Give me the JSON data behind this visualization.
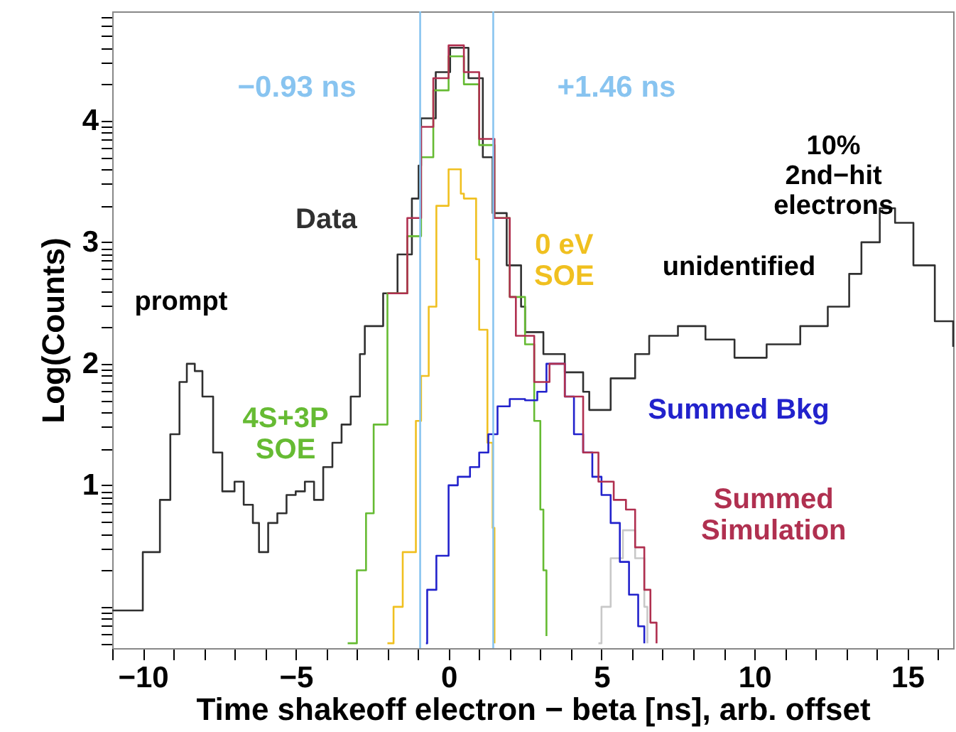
{
  "chart_data": {
    "type": "step",
    "xlabel": "Time shakeoff electron − beta [ns], arb. offset",
    "ylabel": "Log(Counts)",
    "xlim": [
      -11,
      16.5
    ],
    "ylim": [
      -0.34,
      4.9
    ],
    "xticks": [
      {
        "value": -11,
        "label": null
      },
      -10,
      {
        "value": -9,
        "label": null
      },
      {
        "value": -8,
        "label": null
      },
      {
        "value": -7,
        "label": null
      },
      {
        "value": -6,
        "label": null
      },
      -5,
      {
        "value": -4,
        "label": null
      },
      {
        "value": -3,
        "label": null
      },
      {
        "value": -2,
        "label": null
      },
      {
        "value": -1,
        "label": null
      },
      0,
      {
        "value": 1,
        "label": null
      },
      {
        "value": 2,
        "label": null
      },
      {
        "value": 3,
        "label": null
      },
      {
        "value": 4,
        "label": null
      },
      5,
      {
        "value": 6,
        "label": null
      },
      {
        "value": 7,
        "label": null
      },
      {
        "value": 8,
        "label": null
      },
      {
        "value": 9,
        "label": null
      },
      10,
      {
        "value": 11,
        "label": null
      },
      {
        "value": 12,
        "label": null
      },
      {
        "value": 13,
        "label": null
      },
      {
        "value": 14,
        "label": null
      },
      15,
      {
        "value": 16,
        "label": null
      }
    ],
    "yticks": [
      {
        "value": -0.3,
        "label": null
      },
      {
        "value": -0.22,
        "label": null
      },
      {
        "value": -0.15,
        "label": null
      },
      {
        "value": -0.1,
        "label": null
      },
      {
        "value": -0.05,
        "label": null
      },
      {
        "value": 0,
        "label": null
      },
      {
        "value": 0.3,
        "label": null
      },
      {
        "value": 0.48,
        "label": null
      },
      {
        "value": 0.6,
        "label": null
      },
      {
        "value": 0.7,
        "label": null
      },
      {
        "value": 0.78,
        "label": null
      },
      {
        "value": 0.85,
        "label": null
      },
      {
        "value": 0.9,
        "label": null
      },
      {
        "value": 0.95,
        "label": null
      },
      1,
      {
        "value": 1.3,
        "label": null
      },
      {
        "value": 1.48,
        "label": null
      },
      {
        "value": 1.6,
        "label": null
      },
      {
        "value": 1.7,
        "label": null
      },
      {
        "value": 1.78,
        "label": null
      },
      {
        "value": 1.85,
        "label": null
      },
      {
        "value": 1.9,
        "label": null
      },
      {
        "value": 1.95,
        "label": null
      },
      2,
      {
        "value": 2.3,
        "label": null
      },
      {
        "value": 2.48,
        "label": null
      },
      {
        "value": 2.6,
        "label": null
      },
      {
        "value": 2.7,
        "label": null
      },
      {
        "value": 2.78,
        "label": null
      },
      {
        "value": 2.85,
        "label": null
      },
      {
        "value": 2.9,
        "label": null
      },
      {
        "value": 2.95,
        "label": null
      },
      3,
      {
        "value": 3.3,
        "label": null
      },
      {
        "value": 3.48,
        "label": null
      },
      {
        "value": 3.6,
        "label": null
      },
      {
        "value": 3.7,
        "label": null
      },
      {
        "value": 3.78,
        "label": null
      },
      {
        "value": 3.85,
        "label": null
      },
      {
        "value": 3.9,
        "label": null
      },
      {
        "value": 3.95,
        "label": null
      },
      4,
      {
        "value": 4.3,
        "label": null
      },
      {
        "value": 4.48,
        "label": null
      },
      {
        "value": 4.6,
        "label": null
      },
      {
        "value": 4.7,
        "label": null
      },
      {
        "value": 4.78,
        "label": null
      },
      {
        "value": 4.85,
        "label": null
      }
    ],
    "series": [
      {
        "name": "Data",
        "color": "#303030",
        "x": [
          -11,
          -10.3,
          -10.0,
          -9.44,
          -9.1,
          -8.8,
          -8.56,
          -8.3,
          -8.05,
          -7.7,
          -7.4,
          -7.0,
          -6.7,
          -6.4,
          -6.2,
          -5.9,
          -5.6,
          -5.3,
          -5.0,
          -4.7,
          -4.4,
          -4.1,
          -3.8,
          -3.5,
          -3.2,
          -2.9,
          -2.74,
          -2.14,
          -1.67,
          -1.2,
          -0.98,
          -0.9,
          -0.42,
          0.05,
          0.65,
          1.12,
          1.44,
          1.9,
          2.37,
          2.5,
          3.1,
          3.8,
          4.4,
          4.6,
          5.3,
          6.1,
          6.56,
          7.5,
          8.4,
          9.35,
          10.4,
          11.5,
          12.4,
          13.1,
          13.5,
          14.1,
          14.6,
          15.2,
          15.9,
          16.5
        ],
        "values": [
          -0.03,
          -0.03,
          0.45,
          0.88,
          1.42,
          1.85,
          2.0,
          1.94,
          1.73,
          1.27,
          0.95,
          1.03,
          0.84,
          0.69,
          0.45,
          0.69,
          0.77,
          0.92,
          0.95,
          1.03,
          0.88,
          1.15,
          1.35,
          1.5,
          1.73,
          2.08,
          2.31,
          2.58,
          2.9,
          3.36,
          3.63,
          4.02,
          4.4,
          4.6,
          4.35,
          3.7,
          3.24,
          2.81,
          2.47,
          2.26,
          2.08,
          1.93,
          1.77,
          1.62,
          1.88,
          2.08,
          2.23,
          2.31,
          2.2,
          2.05,
          2.16,
          2.31,
          2.47,
          2.74,
          3.0,
          3.28,
          3.16,
          2.81,
          2.35,
          2.14
        ]
      },
      {
        "name": "4S+3P\nSOE",
        "color": "#66bb33",
        "x": [
          -3.3,
          -3.0,
          -2.7,
          -2.45,
          -2.0,
          -1.35,
          -0.9,
          -0.5,
          0,
          0.5,
          1.0,
          1.5,
          2.0,
          2.5,
          2.8,
          3.0,
          3.1,
          3.2
        ],
        "values": [
          -0.3,
          0.3,
          0.77,
          1.5,
          2.58,
          3.05,
          3.7,
          4.25,
          4.53,
          4.3,
          3.8,
          3.2,
          2.55,
          2.16,
          1.53,
          0.8,
          0.3,
          -0.24
        ]
      },
      {
        "name": "0 eV\nSOE",
        "color": "#f0c020",
        "x": [
          -2.0,
          -1.8,
          -1.5,
          -1.07,
          -0.9,
          -0.65,
          -0.4,
          0,
          0.4,
          0.5,
          0.9,
          1.0,
          1.27,
          1.44,
          1.5
        ],
        "values": [
          -0.3,
          0.0,
          0.45,
          1.53,
          1.9,
          2.47,
          3.3,
          3.6,
          3.4,
          3.36,
          2.86,
          2.28,
          1.35,
          0.65,
          -0.3
        ]
      },
      {
        "color": "#c8c8c8",
        "x": [
          4.9,
          5.0,
          5.3,
          5.7,
          6.1,
          6.4,
          6.5
        ],
        "values": [
          -0.3,
          0.0,
          0.4,
          0.63,
          0.4,
          0.0,
          -0.3
        ]
      },
      {
        "name": "Summed Bkg",
        "color": "#2222cc",
        "x": [
          -0.74,
          -0.7,
          -0.4,
          0,
          0.3,
          0.7,
          1.0,
          1.3,
          1.6,
          2.0,
          2.5,
          2.9,
          3.2,
          3.5,
          3.8,
          4.1,
          4.4,
          4.7,
          5.0,
          5.3,
          5.6,
          5.9,
          6.2,
          6.4
        ],
        "values": [
          -0.3,
          0.14,
          0.42,
          1.0,
          1.07,
          1.15,
          1.27,
          1.42,
          1.65,
          1.71,
          1.7,
          1.77,
          2.0,
          2.0,
          1.73,
          1.42,
          1.27,
          1.07,
          0.92,
          0.69,
          0.37,
          0.1,
          -0.16,
          -0.3
        ]
      },
      {
        "name": "Summed\nSimulation",
        "color": "#b03050",
        "x": [
          -2.0,
          -1.35,
          -0.9,
          -0.5,
          0,
          0.5,
          1.0,
          1.5,
          2.0,
          2.2,
          2.8,
          3.3,
          3.8,
          4.4,
          4.9,
          5.4,
          5.8,
          6.1,
          6.4,
          6.6,
          6.8
        ],
        "values": [
          2.58,
          3.2,
          3.95,
          4.35,
          4.62,
          4.4,
          3.85,
          3.2,
          2.55,
          2.23,
          1.85,
          2.0,
          1.73,
          1.27,
          1.03,
          0.88,
          0.8,
          0.49,
          0.14,
          -0.13,
          -0.3
        ]
      }
    ],
    "ref_lines": [
      {
        "axis": "x",
        "value": -0.93,
        "label": "−0.93 ns",
        "color": "#88c4f0"
      },
      {
        "axis": "x",
        "value": 1.46,
        "label": "+1.46 ns",
        "color": "#88c4f0"
      }
    ],
    "annotations": [
      {
        "text": "prompt",
        "x": -8.56,
        "y": 2.0
      },
      {
        "text": "unidentified",
        "x": 7.5,
        "y": 2.31
      },
      {
        "text": "10%\n2nd−hit\nelectrons",
        "x": 13.1,
        "y": 2.74
      }
    ],
    "grid": false,
    "marker": "none"
  }
}
